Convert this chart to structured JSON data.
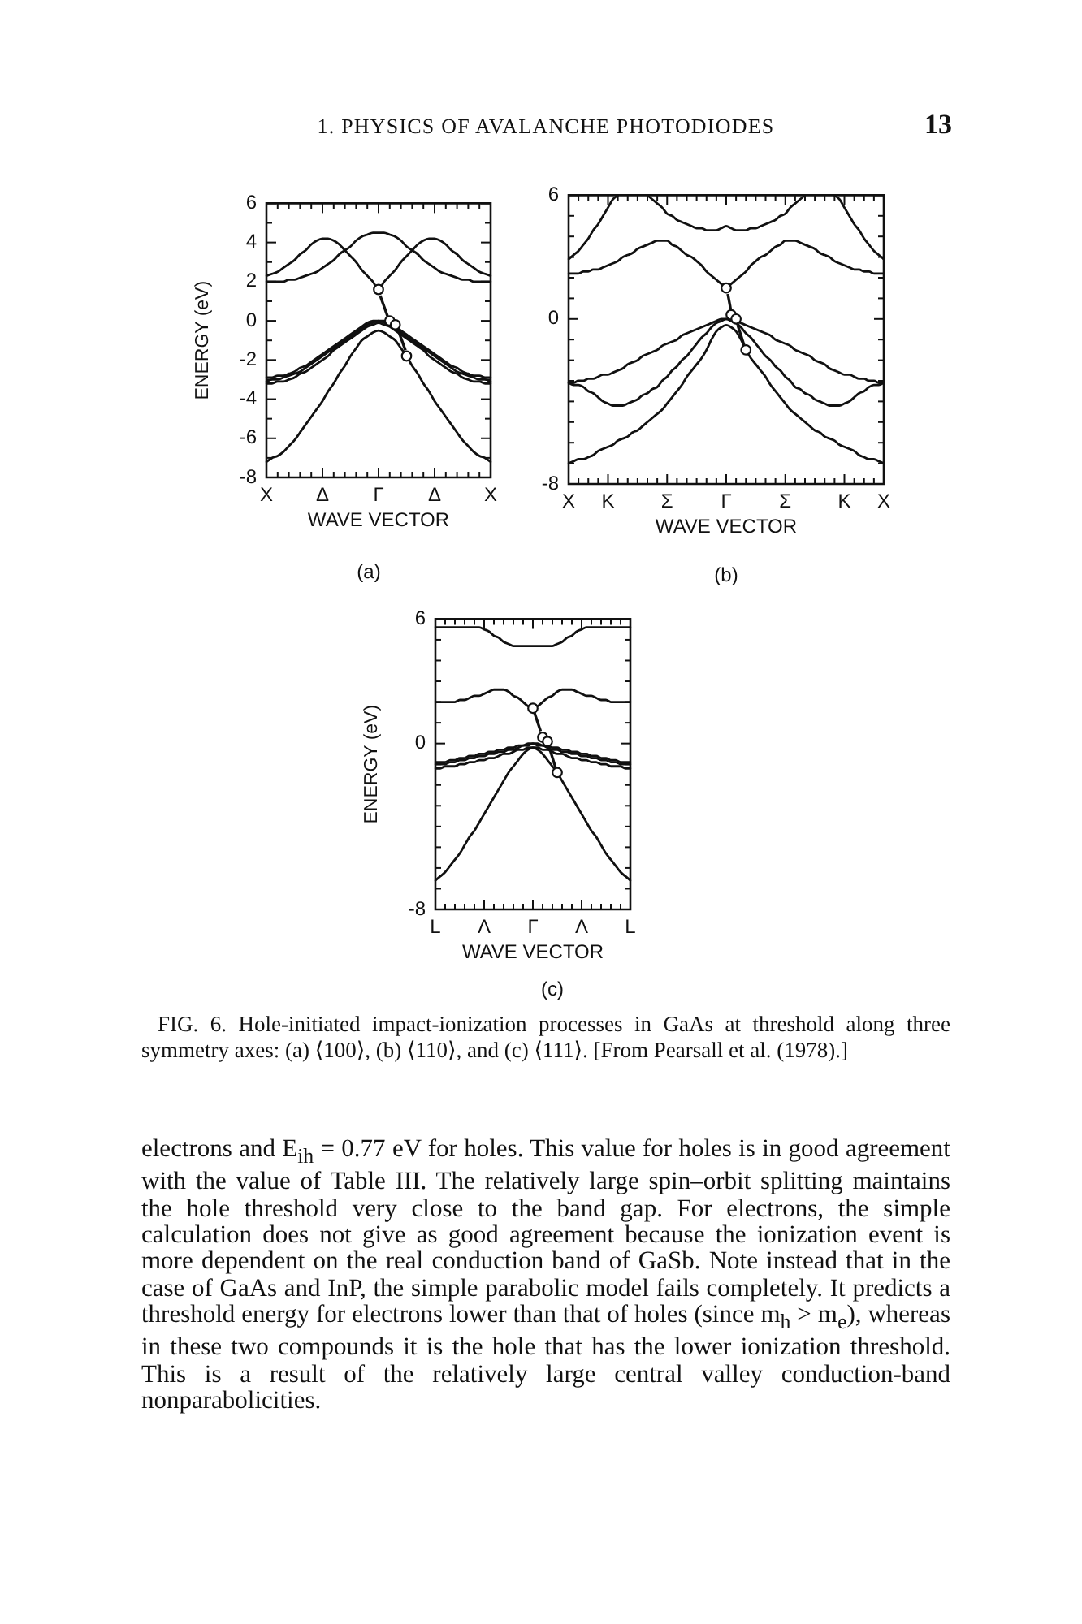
{
  "chart_data": [
    {
      "type": "line",
      "xlabel": "WAVE VECTOR",
      "ylabel": "ENERGY (eV)",
      "ylim": [
        -8,
        6
      ],
      "categories": [
        "X",
        null,
        null,
        null,
        null,
        null,
        null,
        null,
        null,
        null,
        "Δ",
        null,
        null,
        null,
        null,
        null,
        null,
        null,
        null,
        null,
        "Γ",
        null,
        null,
        null,
        null,
        null,
        null,
        null,
        null,
        null,
        "Δ",
        null,
        null,
        null,
        null,
        null,
        null,
        null,
        null,
        null,
        "X"
      ],
      "yticks": [
        6,
        {
          "value": 5,
          "label": null
        },
        4,
        {
          "value": 3,
          "label": null
        },
        2,
        {
          "value": 1,
          "label": null
        },
        0,
        {
          "value": -1,
          "label": null
        },
        -2,
        {
          "value": -3,
          "label": null
        },
        -4,
        {
          "value": -5,
          "label": null
        },
        -6,
        {
          "value": -7,
          "label": null
        },
        -8
      ],
      "annotations": [
        "1. PHYSICS OF AVALANCHE PHOTODIODES",
        "13",
        "(a)"
      ],
      "series": [
        {
          "color": "#111111",
          "values": [
            2.3,
            2.4,
            2.5,
            2.7,
            2.9,
            3.1,
            3.4,
            3.6,
            3.9,
            4.1,
            4.2,
            4.2,
            4.1,
            3.9,
            3.6,
            3.3,
            3.0,
            2.6,
            2.3,
            2.0,
            1.6,
            2.0,
            2.3,
            2.6,
            3.0,
            3.3,
            3.6,
            3.9,
            4.1,
            4.2,
            4.2,
            4.1,
            3.9,
            3.6,
            3.4,
            3.1,
            2.9,
            2.7,
            2.5,
            2.4,
            2.3
          ]
        },
        {
          "color": "#111111",
          "values": [
            2.0,
            2.0,
            2.0,
            2.0,
            2.1,
            2.1,
            2.2,
            2.3,
            2.4,
            2.5,
            2.7,
            2.9,
            3.1,
            3.4,
            3.6,
            3.8,
            4.1,
            4.3,
            4.4,
            4.5,
            4.5,
            4.5,
            4.4,
            4.3,
            4.1,
            3.8,
            3.6,
            3.4,
            3.1,
            2.9,
            2.7,
            2.5,
            2.4,
            2.3,
            2.2,
            2.1,
            2.1,
            2.0,
            2.0,
            2.0,
            2.0
          ]
        },
        {
          "color": "#111111",
          "values": [
            -2.9,
            -2.9,
            -2.8,
            -2.8,
            -2.7,
            -2.6,
            -2.4,
            -2.3,
            -2.1,
            -1.9,
            -1.7,
            -1.5,
            -1.3,
            -1.1,
            -0.9,
            -0.7,
            -0.5,
            -0.3,
            -0.1,
            0.0,
            0.0,
            0.0,
            -0.1,
            -0.3,
            -0.5,
            -0.7,
            -0.9,
            -1.1,
            -1.3,
            -1.5,
            -1.7,
            -1.9,
            -2.1,
            -2.3,
            -2.4,
            -2.6,
            -2.7,
            -2.8,
            -2.8,
            -2.9,
            -2.9
          ]
        },
        {
          "color": "#111111",
          "values": [
            -3.1,
            -3.0,
            -3.0,
            -2.9,
            -2.8,
            -2.7,
            -2.6,
            -2.4,
            -2.2,
            -2.0,
            -1.8,
            -1.6,
            -1.4,
            -1.2,
            -1.0,
            -0.8,
            -0.6,
            -0.4,
            -0.2,
            -0.1,
            0.0,
            -0.1,
            -0.2,
            -0.4,
            -0.6,
            -0.8,
            -1.0,
            -1.2,
            -1.4,
            -1.6,
            -1.8,
            -2.0,
            -2.2,
            -2.4,
            -2.6,
            -2.7,
            -2.8,
            -2.9,
            -3.0,
            -3.0,
            -3.1
          ]
        },
        {
          "color": "#111111",
          "values": [
            -3.2,
            -3.2,
            -3.1,
            -3.1,
            -3.0,
            -2.9,
            -2.7,
            -2.6,
            -2.4,
            -2.2,
            -2.0,
            -1.8,
            -1.5,
            -1.3,
            -1.1,
            -0.9,
            -0.7,
            -0.5,
            -0.3,
            -0.2,
            -0.1,
            -0.2,
            -0.3,
            -0.5,
            -0.7,
            -0.9,
            -1.1,
            -1.3,
            -1.5,
            -1.8,
            -2.0,
            -2.2,
            -2.4,
            -2.6,
            -2.7,
            -2.9,
            -3.0,
            -3.1,
            -3.1,
            -3.2,
            -3.2
          ]
        },
        {
          "color": "#111111",
          "values": [
            -7.2,
            -7.0,
            -6.9,
            -6.7,
            -6.4,
            -6.1,
            -5.7,
            -5.3,
            -4.9,
            -4.5,
            -4.1,
            -3.6,
            -3.2,
            -2.7,
            -2.3,
            -1.8,
            -1.4,
            -1.0,
            -0.8,
            -0.6,
            -0.5,
            -0.6,
            -0.8,
            -1.0,
            -1.4,
            -1.8,
            -2.3,
            -2.7,
            -3.2,
            -3.6,
            -4.1,
            -4.5,
            -4.9,
            -5.3,
            -5.7,
            -6.1,
            -6.4,
            -6.7,
            -6.9,
            -7.0,
            -7.2
          ]
        },
        {
          "type": "scatter",
          "marker": "circle",
          "color": "#111111",
          "values": [
            null,
            null,
            null,
            null,
            null,
            null,
            null,
            null,
            null,
            null,
            null,
            null,
            null,
            null,
            null,
            null,
            null,
            null,
            null,
            null,
            1.6,
            null,
            0.0,
            -0.2,
            null,
            -1.8,
            null,
            null,
            null,
            null,
            null,
            null,
            null,
            null,
            null,
            null,
            null,
            null,
            null,
            null,
            null
          ]
        }
      ]
    },
    {
      "type": "line",
      "xlabel": "WAVE VECTOR",
      "ylim": [
        -8,
        6
      ],
      "categories": [
        "X",
        null,
        null,
        null,
        null,
        null,
        null,
        null,
        "K",
        null,
        null,
        null,
        null,
        null,
        null,
        null,
        null,
        null,
        null,
        null,
        "Σ",
        null,
        null,
        null,
        null,
        null,
        null,
        null,
        null,
        null,
        null,
        null,
        "Γ",
        null,
        null,
        null,
        null,
        null,
        null,
        null,
        null,
        null,
        null,
        null,
        "Σ",
        null,
        null,
        null,
        null,
        null,
        null,
        null,
        null,
        null,
        null,
        null,
        "K",
        null,
        null,
        null,
        null,
        null,
        null,
        null,
        "X"
      ],
      "yticks": [
        6,
        {
          "value": 5,
          "label": null
        },
        {
          "value": 4,
          "label": null
        },
        {
          "value": 3,
          "label": null
        },
        {
          "value": 2,
          "label": null
        },
        {
          "value": 1,
          "label": null
        },
        0,
        {
          "value": -1,
          "label": null
        },
        {
          "value": -2,
          "label": null
        },
        {
          "value": -3,
          "label": null
        },
        {
          "value": -4,
          "label": null
        },
        {
          "value": -5,
          "label": null
        },
        {
          "value": -6,
          "label": null
        },
        {
          "value": -7,
          "label": null
        },
        -8
      ],
      "annotations": [
        "(b)"
      ],
      "series": [
        {
          "color": "#111111",
          "values": [
            2.9,
            3.1,
            3.3,
            3.6,
            3.9,
            4.3,
            4.6,
            5.0,
            5.4,
            5.8,
            6.0,
            null,
            null,
            null,
            null,
            null,
            null,
            null,
            null,
            null,
            null,
            null,
            null,
            null,
            null,
            null,
            null,
            null,
            null,
            null,
            null,
            null,
            null,
            null,
            null,
            null,
            null,
            null,
            null,
            null,
            null,
            null,
            null,
            null,
            null,
            null,
            null,
            null,
            null,
            null,
            null,
            null,
            null,
            null,
            null,
            null,
            null,
            null,
            null,
            null,
            null,
            null,
            null,
            null,
            null
          ]
        },
        {
          "color": "#111111",
          "values": [
            null,
            null,
            null,
            null,
            null,
            null,
            null,
            null,
            null,
            null,
            null,
            null,
            null,
            null,
            null,
            null,
            null,
            null,
            null,
            null,
            null,
            null,
            null,
            null,
            null,
            null,
            null,
            null,
            null,
            null,
            null,
            null,
            null,
            null,
            null,
            null,
            null,
            null,
            null,
            null,
            null,
            null,
            null,
            null,
            null,
            null,
            null,
            null,
            null,
            null,
            null,
            null,
            null,
            null,
            6.0,
            5.8,
            5.4,
            5.0,
            4.6,
            4.3,
            3.9,
            3.6,
            3.3,
            3.1,
            2.9
          ]
        },
        {
          "color": "#111111",
          "values": [
            null,
            null,
            null,
            null,
            null,
            null,
            null,
            null,
            null,
            null,
            null,
            null,
            null,
            null,
            null,
            null,
            6.0,
            5.8,
            5.6,
            5.4,
            5.1,
            5.0,
            4.8,
            4.7,
            4.6,
            4.5,
            4.4,
            4.4,
            4.3,
            4.3,
            4.3,
            4.4,
            4.5,
            4.4,
            4.3,
            4.3,
            4.3,
            4.4,
            4.4,
            4.5,
            4.6,
            4.7,
            4.8,
            5.0,
            5.1,
            5.4,
            5.6,
            5.8,
            6.0,
            null,
            null,
            null,
            null,
            null,
            null,
            null,
            null,
            null,
            null,
            null,
            null,
            null,
            null,
            null,
            null
          ]
        },
        {
          "color": "#111111",
          "values": [
            2.2,
            2.2,
            2.2,
            2.3,
            2.3,
            2.4,
            2.4,
            2.5,
            2.6,
            2.7,
            2.8,
            3.0,
            3.1,
            3.2,
            3.4,
            3.5,
            3.6,
            3.7,
            3.8,
            3.8,
            3.8,
            3.6,
            3.5,
            3.3,
            3.1,
            3.0,
            2.8,
            2.6,
            2.3,
            2.1,
            1.9,
            1.7,
            1.5,
            1.7,
            1.9,
            2.1,
            2.3,
            2.6,
            2.8,
            3.0,
            3.1,
            3.3,
            3.5,
            3.6,
            3.8,
            3.8,
            3.8,
            3.7,
            3.6,
            3.5,
            3.4,
            3.2,
            3.1,
            3.0,
            2.8,
            2.7,
            2.6,
            2.5,
            2.4,
            2.4,
            2.3,
            2.3,
            2.2,
            2.2,
            2.2
          ]
        },
        {
          "color": "#111111",
          "values": [
            -3.1,
            -3.1,
            -3.0,
            -3.0,
            -2.9,
            -2.9,
            -2.8,
            -2.7,
            -2.7,
            -2.6,
            -2.5,
            -2.4,
            -2.2,
            -2.1,
            -2.0,
            -1.8,
            -1.7,
            -1.6,
            -1.5,
            -1.3,
            -1.2,
            -1.1,
            -1.0,
            -0.8,
            -0.7,
            -0.6,
            -0.5,
            -0.4,
            -0.3,
            -0.2,
            -0.1,
            0.0,
            0.0,
            0.0,
            -0.1,
            -0.2,
            -0.3,
            -0.4,
            -0.5,
            -0.6,
            -0.7,
            -0.8,
            -1.0,
            -1.1,
            -1.2,
            -1.3,
            -1.5,
            -1.6,
            -1.7,
            -1.8,
            -2.0,
            -2.1,
            -2.2,
            -2.4,
            -2.5,
            -2.6,
            -2.7,
            -2.7,
            -2.8,
            -2.9,
            -2.9,
            -3.0,
            -3.0,
            -3.1,
            -3.1
          ]
        },
        {
          "color": "#111111",
          "values": [
            -3.1,
            -3.2,
            -3.2,
            -3.3,
            -3.5,
            -3.6,
            -3.8,
            -4.0,
            -4.1,
            -4.2,
            -4.2,
            -4.2,
            -4.1,
            -4.0,
            -3.9,
            -3.7,
            -3.6,
            -3.4,
            -3.3,
            -3.0,
            -2.8,
            -2.5,
            -2.3,
            -2.0,
            -1.8,
            -1.5,
            -1.2,
            -0.9,
            -0.7,
            -0.4,
            -0.2,
            -0.1,
            0.0,
            -0.1,
            -0.2,
            -0.4,
            -0.7,
            -0.9,
            -1.2,
            -1.5,
            -1.8,
            -2.0,
            -2.3,
            -2.5,
            -2.8,
            -3.0,
            -3.3,
            -3.4,
            -3.6,
            -3.7,
            -3.9,
            -4.0,
            -4.1,
            -4.2,
            -4.2,
            -4.2,
            -4.1,
            -4.0,
            -3.8,
            -3.6,
            -3.5,
            -3.3,
            -3.2,
            -3.2,
            -3.1
          ]
        },
        {
          "color": "#111111",
          "values": [
            -7.0,
            -6.9,
            -6.8,
            -6.8,
            -6.7,
            -6.6,
            -6.4,
            -6.3,
            -6.2,
            -6.1,
            -5.9,
            -5.8,
            -5.7,
            -5.5,
            -5.4,
            -5.2,
            -5.0,
            -4.8,
            -4.6,
            -4.4,
            -4.1,
            -3.8,
            -3.5,
            -3.2,
            -2.8,
            -2.5,
            -2.2,
            -1.9,
            -1.5,
            -1.0,
            -0.6,
            -0.4,
            -0.3,
            -0.4,
            -0.6,
            -1.0,
            -1.5,
            -1.9,
            -2.2,
            -2.5,
            -2.8,
            -3.2,
            -3.5,
            -3.8,
            -4.1,
            -4.4,
            -4.6,
            -4.8,
            -5.0,
            -5.2,
            -5.4,
            -5.5,
            -5.7,
            -5.8,
            -5.9,
            -6.1,
            -6.2,
            -6.3,
            -6.4,
            -6.6,
            -6.7,
            -6.8,
            -6.8,
            -6.9,
            -7.0
          ]
        },
        {
          "type": "scatter",
          "marker": "circle",
          "color": "#111111",
          "values": [
            null,
            null,
            null,
            null,
            null,
            null,
            null,
            null,
            null,
            null,
            null,
            null,
            null,
            null,
            null,
            null,
            null,
            null,
            null,
            null,
            null,
            null,
            null,
            null,
            null,
            null,
            null,
            null,
            null,
            null,
            null,
            null,
            1.5,
            0.2,
            0.0,
            null,
            -1.5,
            null,
            null,
            null,
            null,
            null,
            null,
            null,
            null,
            null,
            null,
            null,
            null,
            null,
            null,
            null,
            null,
            null,
            null,
            null,
            null,
            null,
            null,
            null,
            null,
            null,
            null,
            null,
            null
          ]
        }
      ]
    },
    {
      "type": "line",
      "xlabel": "WAVE VECTOR",
      "ylabel": "ENERGY (eV)",
      "ylim": [
        -8,
        6
      ],
      "categories": [
        "L",
        null,
        null,
        null,
        null,
        null,
        null,
        null,
        null,
        null,
        "Λ",
        null,
        null,
        null,
        null,
        null,
        null,
        null,
        null,
        null,
        "Γ",
        null,
        null,
        null,
        null,
        null,
        null,
        null,
        null,
        null,
        "Λ",
        null,
        null,
        null,
        null,
        null,
        null,
        null,
        null,
        null,
        "L"
      ],
      "yticks": [
        6,
        {
          "value": 5,
          "label": null
        },
        {
          "value": 4,
          "label": null
        },
        {
          "value": 3,
          "label": null
        },
        {
          "value": 2,
          "label": null
        },
        {
          "value": 1,
          "label": null
        },
        0,
        {
          "value": -1,
          "label": null
        },
        {
          "value": -2,
          "label": null
        },
        {
          "value": -3,
          "label": null
        },
        {
          "value": -4,
          "label": null
        },
        {
          "value": -5,
          "label": null
        },
        {
          "value": -6,
          "label": null
        },
        {
          "value": -7,
          "label": null
        },
        -8
      ],
      "annotations": [
        "(c)",
        "FIG. 6. Hole-initiated impact-ionization processes in GaAs at threshold along three symmetry axes: (a) ⟨100⟩, (b) ⟨110⟩, and (c) ⟨111⟩. [From Pearsall et al. (1978).]",
        "electrons and E$_{ih}$ = 0.77 eV for holes. This value for holes is in good agreement with the value of Table III. The relatively large spin–orbit splitting maintains the hole threshold very close to the band gap. For electrons, the simple calculation does not give as good agreement because the ionization event is more dependent on the real conduction band of GaSb. Note instead that in the case of GaAs and InP, the simple parabolic model fails completely. It predicts a threshold energy for electrons lower than that of holes (since m$_{h}$ > m$_{e}$), whereas in these two compounds it is the hole that has the lower ionization threshold. This is a result of the relatively large central valley conduction-band nonparabolicities."
      ],
      "series": [
        {
          "color": "#111111",
          "values": [
            5.6,
            5.6,
            5.6,
            5.6,
            5.6,
            5.6,
            5.6,
            5.6,
            5.6,
            5.6,
            5.5,
            5.4,
            5.2,
            5.1,
            4.9,
            4.8,
            4.7,
            4.7,
            4.7,
            4.7,
            4.7,
            4.7,
            4.7,
            4.7,
            4.7,
            4.8,
            4.9,
            5.1,
            5.2,
            5.4,
            5.5,
            5.6,
            5.6,
            5.6,
            5.6,
            5.6,
            5.6,
            5.6,
            5.6,
            5.6,
            5.6
          ]
        },
        {
          "color": "#111111",
          "values": [
            2.0,
            2.0,
            2.0,
            2.0,
            2.0,
            2.1,
            2.1,
            2.2,
            2.3,
            2.3,
            2.4,
            2.5,
            2.6,
            2.6,
            2.6,
            2.5,
            2.3,
            2.2,
            2.0,
            1.8,
            1.7,
            1.8,
            2.0,
            2.2,
            2.3,
            2.5,
            2.6,
            2.6,
            2.6,
            2.5,
            2.4,
            2.3,
            2.3,
            2.2,
            2.1,
            2.1,
            2.0,
            2.0,
            2.0,
            2.0,
            2.0
          ]
        },
        {
          "color": "#111111",
          "values": [
            -0.9,
            -0.9,
            -0.9,
            -0.8,
            -0.8,
            -0.7,
            -0.7,
            -0.6,
            -0.6,
            -0.5,
            -0.5,
            -0.4,
            -0.4,
            -0.3,
            -0.3,
            -0.2,
            -0.2,
            -0.1,
            -0.1,
            0.0,
            0.0,
            0.0,
            -0.1,
            -0.1,
            -0.2,
            -0.2,
            -0.3,
            -0.3,
            -0.4,
            -0.4,
            -0.5,
            -0.5,
            -0.6,
            -0.6,
            -0.7,
            -0.7,
            -0.8,
            -0.8,
            -0.9,
            -0.9,
            -0.9
          ]
        },
        {
          "color": "#111111",
          "values": [
            -1.0,
            -1.0,
            -1.0,
            -0.9,
            -0.9,
            -0.8,
            -0.8,
            -0.7,
            -0.7,
            -0.6,
            -0.6,
            -0.5,
            -0.5,
            -0.4,
            -0.4,
            -0.3,
            -0.3,
            -0.2,
            -0.1,
            -0.1,
            0.0,
            -0.1,
            -0.1,
            -0.2,
            -0.3,
            -0.3,
            -0.4,
            -0.4,
            -0.5,
            -0.5,
            -0.6,
            -0.6,
            -0.7,
            -0.7,
            -0.8,
            -0.8,
            -0.9,
            -0.9,
            -1.0,
            -1.0,
            -1.0
          ]
        },
        {
          "color": "#111111",
          "values": [
            -1.2,
            -1.2,
            -1.1,
            -1.1,
            -1.1,
            -1.0,
            -1.0,
            -0.9,
            -0.9,
            -0.8,
            -0.8,
            -0.7,
            -0.7,
            -0.6,
            -0.5,
            -0.5,
            -0.4,
            -0.3,
            -0.3,
            -0.2,
            -0.2,
            -0.2,
            -0.3,
            -0.3,
            -0.4,
            -0.5,
            -0.5,
            -0.6,
            -0.7,
            -0.7,
            -0.8,
            -0.8,
            -0.9,
            -0.9,
            -1.0,
            -1.0,
            -1.1,
            -1.1,
            -1.1,
            -1.2,
            -1.2
          ]
        },
        {
          "color": "#111111",
          "values": [
            -6.6,
            -6.4,
            -6.2,
            -5.9,
            -5.6,
            -5.3,
            -4.9,
            -4.5,
            -4.2,
            -3.8,
            -3.4,
            -3.0,
            -2.6,
            -2.2,
            -1.8,
            -1.4,
            -1.1,
            -0.8,
            -0.5,
            -0.3,
            -0.2,
            -0.3,
            -0.5,
            -0.8,
            -1.1,
            -1.4,
            -1.8,
            -2.2,
            -2.6,
            -3.0,
            -3.4,
            -3.8,
            -4.2,
            -4.5,
            -4.9,
            -5.3,
            -5.6,
            -5.9,
            -6.2,
            -6.4,
            -6.6
          ]
        },
        {
          "type": "scatter",
          "marker": "circle",
          "color": "#111111",
          "values": [
            null,
            null,
            null,
            null,
            null,
            null,
            null,
            null,
            null,
            null,
            null,
            null,
            null,
            null,
            null,
            null,
            null,
            null,
            null,
            null,
            1.7,
            null,
            0.3,
            0.1,
            null,
            -1.4,
            null,
            null,
            null,
            null,
            null,
            null,
            null,
            null,
            null,
            null,
            null,
            null,
            null,
            null,
            null
          ]
        }
      ]
    }
  ]
}
